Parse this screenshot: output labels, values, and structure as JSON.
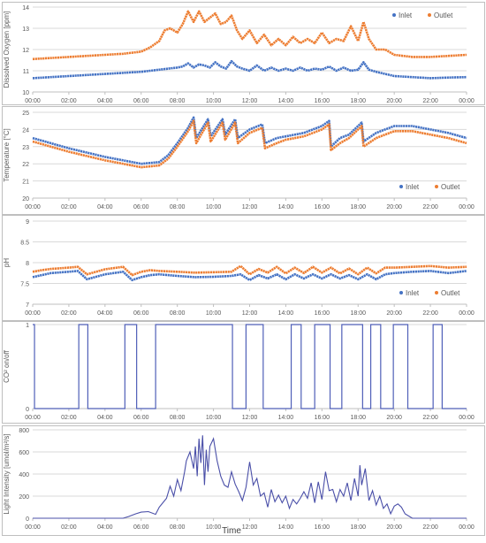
{
  "x_ticks": [
    "00:00",
    "02:00",
    "04:00",
    "06:00",
    "08:00",
    "10:00",
    "12:00",
    "14:00",
    "16:00",
    "18:00",
    "20:00",
    "22:00",
    "00:00"
  ],
  "x_axis_title": "Time",
  "colors": {
    "inlet": "#4472C4",
    "outlet": "#ED7D31",
    "co2": "#4F5FB8",
    "light": "#4A4FA8",
    "grid": "#D9D9D9",
    "axis": "#BFBFBF",
    "text": "#595959"
  },
  "chart_data": [
    {
      "type": "scatter",
      "ylabel": "Dissolved Oxygen [ppm]",
      "ylim": [
        10,
        14
      ],
      "yticks": [
        "14",
        "13",
        "12",
        "11",
        "10"
      ],
      "legend_position": "top-right",
      "x_unit": "hours",
      "series": [
        {
          "name": "Inlet",
          "color": "#4472C4",
          "x": [
            0,
            1,
            2,
            3,
            4,
            5,
            6,
            6.5,
            7,
            7.5,
            8,
            8.3,
            8.6,
            8.9,
            9.2,
            9.5,
            9.8,
            10.1,
            10.4,
            10.7,
            11,
            11.3,
            11.6,
            12,
            12.4,
            12.8,
            13.2,
            13.6,
            14,
            14.4,
            14.8,
            15.2,
            15.6,
            16,
            16.4,
            16.8,
            17.2,
            17.6,
            18,
            18.3,
            18.6,
            19,
            19.5,
            20,
            21,
            22,
            23,
            24
          ],
          "y": [
            10.65,
            10.7,
            10.75,
            10.8,
            10.85,
            10.9,
            10.95,
            11.0,
            11.05,
            11.1,
            11.15,
            11.2,
            11.35,
            11.15,
            11.3,
            11.25,
            11.15,
            11.4,
            11.2,
            11.1,
            11.45,
            11.2,
            11.1,
            11.0,
            11.25,
            11.0,
            11.15,
            11.0,
            11.1,
            11.0,
            11.15,
            11.0,
            11.1,
            11.05,
            11.2,
            11.0,
            11.15,
            11.0,
            11.05,
            11.4,
            11.05,
            10.95,
            10.85,
            10.75,
            10.7,
            10.65,
            10.68,
            10.7
          ]
        },
        {
          "name": "Outlet",
          "color": "#ED7D31",
          "x": [
            0,
            1,
            2,
            3,
            4,
            5,
            6,
            6.5,
            7,
            7.3,
            7.6,
            8,
            8.3,
            8.6,
            8.9,
            9.2,
            9.5,
            9.8,
            10.1,
            10.4,
            10.7,
            11,
            11.3,
            11.6,
            12,
            12.4,
            12.8,
            13.2,
            13.6,
            14,
            14.4,
            14.8,
            15.2,
            15.6,
            16,
            16.4,
            16.8,
            17.2,
            17.6,
            18,
            18.3,
            18.6,
            19,
            19.5,
            20,
            21,
            22,
            23,
            24
          ],
          "y": [
            11.55,
            11.6,
            11.65,
            11.7,
            11.75,
            11.8,
            11.9,
            12.1,
            12.4,
            12.9,
            13.0,
            12.8,
            13.2,
            13.8,
            13.3,
            13.8,
            13.3,
            13.5,
            13.7,
            13.2,
            13.3,
            13.6,
            12.9,
            12.5,
            12.9,
            12.3,
            12.7,
            12.2,
            12.5,
            12.2,
            12.6,
            12.3,
            12.5,
            12.3,
            12.8,
            12.3,
            12.5,
            12.4,
            13.1,
            12.4,
            13.3,
            12.5,
            12.0,
            12.0,
            11.75,
            11.65,
            11.65,
            11.7,
            11.75
          ]
        }
      ]
    },
    {
      "type": "scatter",
      "ylabel": "Temperature [°C]",
      "ylim": [
        20,
        25
      ],
      "yticks": [
        "25",
        "24",
        "23",
        "22",
        "21",
        "20"
      ],
      "legend_position": "bottom-right",
      "x_unit": "hours",
      "series": [
        {
          "name": "Inlet",
          "color": "#4472C4",
          "x": [
            0,
            2,
            4,
            6,
            7,
            7.5,
            8,
            8.6,
            8.9,
            9.05,
            9.7,
            9.85,
            10.5,
            10.65,
            11.2,
            11.35,
            12,
            12.7,
            12.85,
            13.5,
            14,
            15,
            16,
            16.4,
            16.5,
            17,
            17.5,
            18.2,
            18.3,
            19,
            19.5,
            20,
            21,
            22,
            23,
            24
          ],
          "y": [
            23.5,
            22.9,
            22.4,
            22.0,
            22.1,
            22.5,
            23.2,
            24.1,
            24.7,
            23.5,
            24.6,
            23.6,
            24.6,
            23.7,
            24.6,
            23.5,
            24.0,
            24.3,
            23.2,
            23.5,
            23.6,
            23.8,
            24.2,
            24.5,
            23.0,
            23.5,
            23.7,
            24.4,
            23.3,
            23.8,
            24.0,
            24.2,
            24.2,
            24.0,
            23.8,
            23.5
          ],
          "lines": []
        },
        {
          "name": "Outlet",
          "color": "#ED7D31",
          "x": [
            0,
            2,
            4,
            6,
            7,
            7.5,
            8,
            8.6,
            8.9,
            9.05,
            9.7,
            9.85,
            10.5,
            10.65,
            11.2,
            11.35,
            12,
            12.7,
            12.85,
            13.5,
            14,
            15,
            16,
            16.4,
            16.5,
            17,
            17.5,
            18.2,
            18.3,
            19,
            19.5,
            20,
            21,
            22,
            23,
            24
          ],
          "y": [
            23.3,
            22.7,
            22.2,
            21.8,
            21.9,
            22.3,
            23.0,
            23.9,
            24.5,
            23.2,
            24.4,
            23.3,
            24.4,
            23.4,
            24.4,
            23.2,
            23.8,
            24.1,
            22.9,
            23.2,
            23.4,
            23.6,
            24.0,
            24.3,
            22.8,
            23.2,
            23.5,
            24.2,
            23.0,
            23.5,
            23.7,
            23.9,
            23.9,
            23.7,
            23.5,
            23.2
          ]
        }
      ]
    },
    {
      "type": "scatter",
      "ylabel": "pH",
      "ylim": [
        7,
        9
      ],
      "yticks": [
        "9",
        "8.5",
        "8",
        "7.5",
        "7"
      ],
      "legend_position": "bottom-right",
      "x_unit": "hours",
      "series": [
        {
          "name": "Inlet",
          "color": "#4472C4",
          "x": [
            0,
            0.5,
            1,
            2,
            2.5,
            3,
            4,
            5,
            5.5,
            6,
            6.5,
            7,
            8,
            9,
            10,
            11,
            11.5,
            12,
            12.5,
            13,
            13.5,
            14,
            14.5,
            15,
            15.5,
            16,
            16.5,
            17,
            17.5,
            18,
            18.5,
            19,
            19.5,
            20,
            21,
            22,
            23,
            24
          ],
          "y": [
            7.65,
            7.7,
            7.75,
            7.78,
            7.8,
            7.6,
            7.72,
            7.78,
            7.58,
            7.65,
            7.7,
            7.72,
            7.68,
            7.65,
            7.66,
            7.68,
            7.72,
            7.58,
            7.7,
            7.62,
            7.72,
            7.6,
            7.72,
            7.62,
            7.72,
            7.62,
            7.72,
            7.62,
            7.7,
            7.6,
            7.72,
            7.6,
            7.72,
            7.75,
            7.78,
            7.8,
            7.75,
            7.8
          ]
        },
        {
          "name": "Outlet",
          "color": "#ED7D31",
          "x": [
            0,
            0.5,
            1,
            2,
            2.5,
            3,
            4,
            5,
            5.5,
            6,
            6.5,
            7,
            8,
            9,
            10,
            11,
            11.5,
            12,
            12.5,
            13,
            13.5,
            14,
            14.5,
            15,
            15.5,
            16,
            16.5,
            17,
            17.5,
            18,
            18.5,
            19,
            19.5,
            20,
            21,
            22,
            23,
            24
          ],
          "y": [
            7.78,
            7.82,
            7.85,
            7.88,
            7.9,
            7.72,
            7.84,
            7.9,
            7.7,
            7.78,
            7.82,
            7.8,
            7.78,
            7.76,
            7.77,
            7.78,
            7.92,
            7.72,
            7.85,
            7.76,
            7.9,
            7.74,
            7.88,
            7.75,
            7.9,
            7.76,
            7.88,
            7.74,
            7.86,
            7.72,
            7.88,
            7.74,
            7.88,
            7.88,
            7.9,
            7.92,
            7.88,
            7.9
          ]
        }
      ]
    },
    {
      "type": "line",
      "ylabel": "CO² on/off",
      "ylim": [
        0,
        1
      ],
      "yticks": [
        "1",
        "0"
      ],
      "x_unit": "hours",
      "series": [
        {
          "name": "CO2",
          "color": "#4F5FB8",
          "on_intervals": [
            [
              0,
              0.1
            ],
            [
              2.55,
              3.05
            ],
            [
              5.1,
              5.75
            ],
            [
              6.8,
              11.05
            ],
            [
              11.8,
              12.75
            ],
            [
              14.3,
              14.85
            ],
            [
              15.6,
              16.45
            ],
            [
              17.1,
              18.25
            ],
            [
              18.7,
              19.25
            ],
            [
              19.95,
              20.75
            ],
            [
              22.15,
              22.65
            ]
          ]
        }
      ]
    },
    {
      "type": "line",
      "ylabel": "Light Intensity [umol/m²/s]",
      "ylim": [
        0,
        800
      ],
      "yticks": [
        "800",
        "600",
        "400",
        "200",
        "0"
      ],
      "x_unit": "hours",
      "series": [
        {
          "name": "Light",
          "color": "#4A4FA8",
          "x": [
            0,
            5,
            5.3,
            5.7,
            6,
            6.4,
            6.8,
            7,
            7.2,
            7.4,
            7.6,
            7.8,
            8,
            8.2,
            8.4,
            8.5,
            8.7,
            8.9,
            9,
            9.1,
            9.2,
            9.3,
            9.4,
            9.5,
            9.6,
            9.7,
            9.8,
            10,
            10.2,
            10.4,
            10.6,
            10.8,
            11,
            11.2,
            11.4,
            11.6,
            11.8,
            12,
            12.2,
            12.4,
            12.6,
            12.8,
            13,
            13.2,
            13.4,
            13.6,
            13.8,
            14,
            14.2,
            14.4,
            14.6,
            14.8,
            15,
            15.2,
            15.4,
            15.6,
            15.8,
            16,
            16.2,
            16.4,
            16.6,
            16.8,
            17,
            17.2,
            17.4,
            17.6,
            17.8,
            18,
            18.1,
            18.2,
            18.4,
            18.6,
            18.8,
            19,
            19.2,
            19.4,
            19.6,
            19.8,
            20,
            20.2,
            20.4,
            20.6,
            21,
            24
          ],
          "y": [
            0,
            0,
            15,
            40,
            55,
            60,
            35,
            100,
            140,
            180,
            290,
            200,
            350,
            250,
            420,
            520,
            600,
            450,
            650,
            380,
            720,
            500,
            750,
            300,
            620,
            420,
            650,
            720,
            520,
            380,
            300,
            280,
            420,
            310,
            240,
            160,
            280,
            510,
            300,
            360,
            200,
            230,
            100,
            260,
            150,
            210,
            140,
            200,
            90,
            170,
            130,
            180,
            240,
            180,
            320,
            140,
            330,
            170,
            420,
            250,
            260,
            150,
            260,
            200,
            320,
            160,
            360,
            200,
            480,
            300,
            450,
            160,
            250,
            120,
            200,
            90,
            130,
            40,
            110,
            130,
            100,
            40,
            0,
            0
          ]
        }
      ]
    }
  ]
}
